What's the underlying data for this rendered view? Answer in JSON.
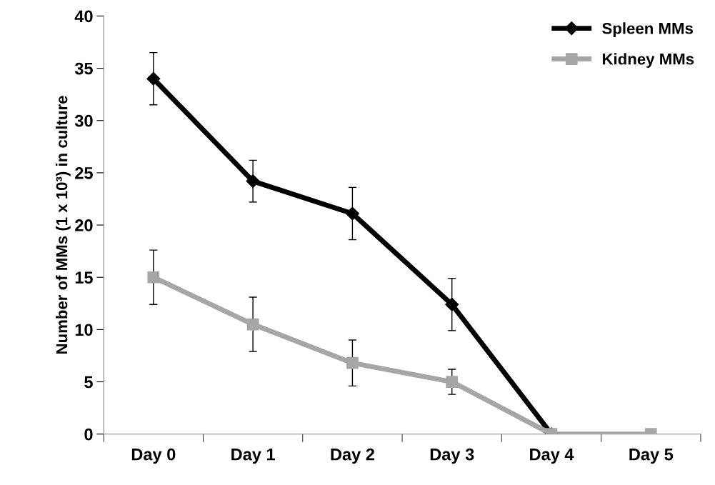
{
  "chart_data": {
    "type": "line",
    "ylabel": "Number of MMs (1 x 10³) in culture",
    "categories": [
      "Day 0",
      "Day 1",
      "Day 2",
      "Day 3",
      "Day 4",
      "Day 5"
    ],
    "series": [
      {
        "name": "Spleen MMs",
        "color": "#000000",
        "marker": "diamond",
        "values": [
          34,
          24.2,
          21.1,
          12.4,
          0,
          null
        ],
        "errors": [
          2.5,
          2,
          2.5,
          2.5,
          null,
          null
        ]
      },
      {
        "name": "Kidney MMs",
        "color": "#a6a6a6",
        "marker": "square",
        "values": [
          15,
          10.5,
          6.8,
          5,
          0,
          0
        ],
        "errors": [
          2.6,
          2.6,
          2.2,
          1.2,
          null,
          null
        ]
      }
    ],
    "ylim": [
      0,
      40
    ],
    "yticks": [
      0,
      5,
      10,
      15,
      20,
      25,
      30,
      35,
      40
    ],
    "grid": false,
    "legend": "top right",
    "line_style": "solid"
  }
}
